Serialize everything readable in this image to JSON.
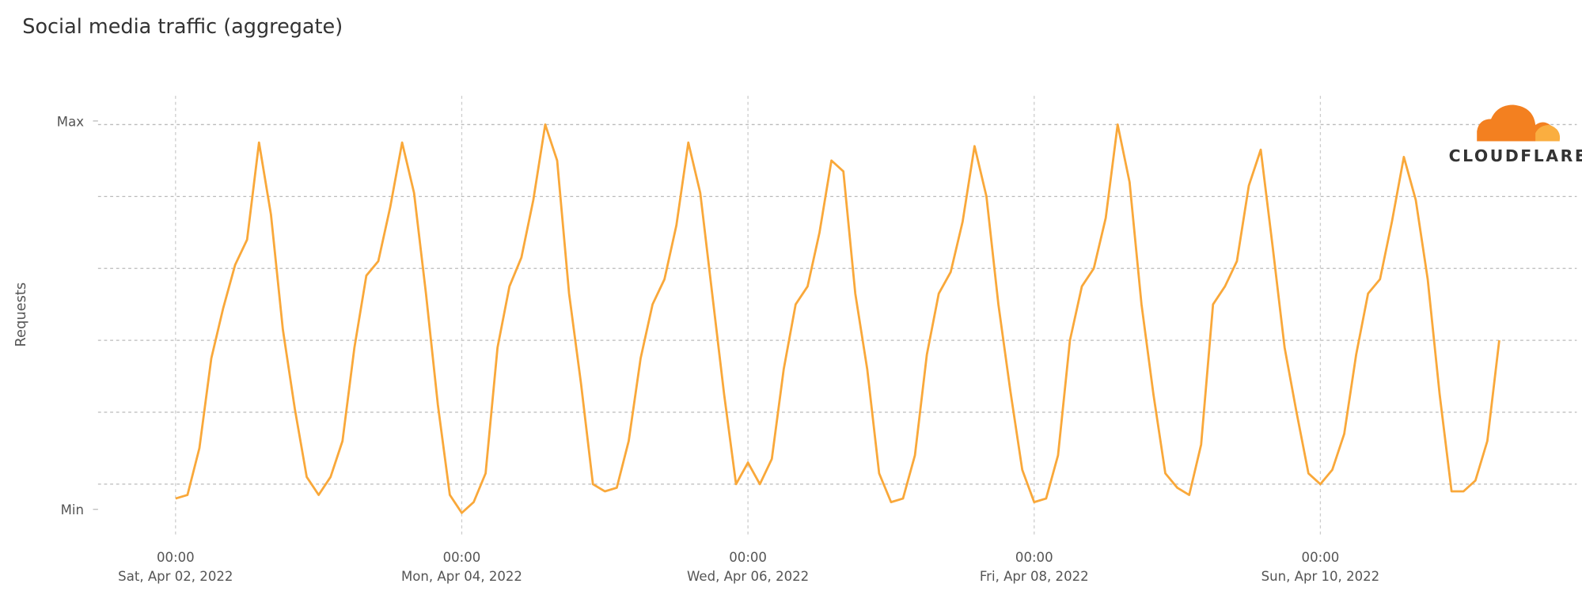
{
  "chart_data": {
    "type": "line",
    "title": "Social media traffic (aggregate)",
    "ylabel": "Requests",
    "brand": "CLOUDFLARE",
    "xlim": [
      "2022-04-01 11:00",
      "2022-04-11 19:00"
    ],
    "ylim": [
      -14,
      108
    ],
    "yticks": [
      {
        "value": -7,
        "label": "Min"
      },
      {
        "value": 101,
        "label": "Max"
      }
    ],
    "ygrid": [
      0,
      20,
      40,
      60,
      80,
      100
    ],
    "xticks": [
      {
        "value": "2022-04-02 00:00",
        "time": "00:00",
        "date": "Sat, Apr 02, 2022"
      },
      {
        "value": "2022-04-04 00:00",
        "time": "00:00",
        "date": "Mon, Apr 04, 2022"
      },
      {
        "value": "2022-04-06 00:00",
        "time": "00:00",
        "date": "Wed, Apr 06, 2022"
      },
      {
        "value": "2022-04-08 00:00",
        "time": "00:00",
        "date": "Fri, Apr 08, 2022"
      },
      {
        "value": "2022-04-10 00:00",
        "time": "00:00",
        "date": "Sun, Apr 10, 2022"
      }
    ],
    "grid": true,
    "x": [
      "2022-04-02 00:00",
      "2022-04-02 02:00",
      "2022-04-02 04:00",
      "2022-04-02 06:00",
      "2022-04-02 08:00",
      "2022-04-02 10:00",
      "2022-04-02 12:00",
      "2022-04-02 14:00",
      "2022-04-02 16:00",
      "2022-04-02 18:00",
      "2022-04-02 20:00",
      "2022-04-02 22:00",
      "2022-04-03 00:00",
      "2022-04-03 02:00",
      "2022-04-03 04:00",
      "2022-04-03 06:00",
      "2022-04-03 08:00",
      "2022-04-03 10:00",
      "2022-04-03 12:00",
      "2022-04-03 14:00",
      "2022-04-03 16:00",
      "2022-04-03 18:00",
      "2022-04-03 20:00",
      "2022-04-03 22:00",
      "2022-04-04 00:00",
      "2022-04-04 02:00",
      "2022-04-04 04:00",
      "2022-04-04 06:00",
      "2022-04-04 08:00",
      "2022-04-04 10:00",
      "2022-04-04 12:00",
      "2022-04-04 14:00",
      "2022-04-04 16:00",
      "2022-04-04 18:00",
      "2022-04-04 20:00",
      "2022-04-04 22:00",
      "2022-04-05 00:00",
      "2022-04-05 02:00",
      "2022-04-05 04:00",
      "2022-04-05 06:00",
      "2022-04-05 08:00",
      "2022-04-05 10:00",
      "2022-04-05 12:00",
      "2022-04-05 14:00",
      "2022-04-05 16:00",
      "2022-04-05 18:00",
      "2022-04-05 20:00",
      "2022-04-05 22:00",
      "2022-04-06 00:00",
      "2022-04-06 02:00",
      "2022-04-06 04:00",
      "2022-04-06 06:00",
      "2022-04-06 08:00",
      "2022-04-06 10:00",
      "2022-04-06 12:00",
      "2022-04-06 14:00",
      "2022-04-06 16:00",
      "2022-04-06 18:00",
      "2022-04-06 20:00",
      "2022-04-06 22:00",
      "2022-04-07 00:00",
      "2022-04-07 02:00",
      "2022-04-07 04:00",
      "2022-04-07 06:00",
      "2022-04-07 08:00",
      "2022-04-07 10:00",
      "2022-04-07 12:00",
      "2022-04-07 14:00",
      "2022-04-07 16:00",
      "2022-04-07 18:00",
      "2022-04-07 20:00",
      "2022-04-07 22:00",
      "2022-04-08 00:00",
      "2022-04-08 02:00",
      "2022-04-08 04:00",
      "2022-04-08 06:00",
      "2022-04-08 08:00",
      "2022-04-08 10:00",
      "2022-04-08 12:00",
      "2022-04-08 14:00",
      "2022-04-08 16:00",
      "2022-04-08 18:00",
      "2022-04-08 20:00",
      "2022-04-08 22:00",
      "2022-04-09 00:00",
      "2022-04-09 02:00",
      "2022-04-09 04:00",
      "2022-04-09 06:00",
      "2022-04-09 08:00",
      "2022-04-09 10:00",
      "2022-04-09 12:00",
      "2022-04-09 14:00",
      "2022-04-09 16:00",
      "2022-04-09 18:00",
      "2022-04-09 20:00",
      "2022-04-09 22:00",
      "2022-04-10 00:00",
      "2022-04-10 02:00",
      "2022-04-10 04:00",
      "2022-04-10 06:00",
      "2022-04-10 08:00",
      "2022-04-10 10:00",
      "2022-04-10 12:00",
      "2022-04-10 14:00",
      "2022-04-10 16:00",
      "2022-04-10 18:00",
      "2022-04-10 20:00",
      "2022-04-10 22:00",
      "2022-04-11 00:00",
      "2022-04-11 02:00",
      "2022-04-11 04:00",
      "2022-04-11 06:00"
    ],
    "series": [
      {
        "name": "Social media",
        "color": "#f9a83a",
        "values": [
          -4,
          -3,
          10,
          35,
          49,
          61,
          68,
          95,
          75,
          43,
          21,
          2,
          -3,
          2,
          12,
          38,
          58,
          62,
          77,
          95,
          81,
          53,
          22,
          -3,
          -8,
          -5,
          3,
          38,
          55,
          63,
          79,
          100,
          90,
          53,
          28,
          0,
          -2,
          -1,
          12,
          35,
          50,
          57,
          72,
          95,
          81,
          53,
          25,
          0,
          6,
          0,
          7,
          32,
          50,
          55,
          70,
          90,
          87,
          53,
          32,
          3,
          -5,
          -4,
          8,
          36,
          53,
          59,
          73,
          94,
          80,
          50,
          26,
          4,
          -5,
          -4,
          8,
          40,
          55,
          60,
          74,
          100,
          84,
          50,
          25,
          3,
          -1,
          -3,
          11,
          50,
          55,
          62,
          83,
          93,
          66,
          38,
          20,
          3,
          0,
          4,
          14,
          36,
          53,
          57,
          73,
          91,
          79,
          57,
          25,
          -2,
          -2,
          1,
          12,
          40
        ]
      }
    ]
  }
}
